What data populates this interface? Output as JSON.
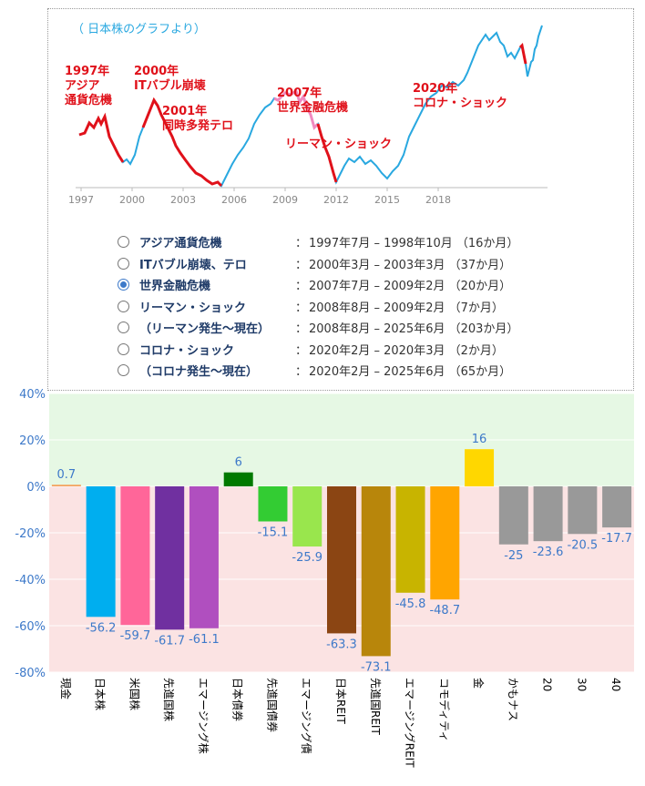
{
  "line_chart": {
    "caption": "（ 日本株のグラフより）",
    "x_ticks": [
      "1997",
      "2000",
      "2003",
      "2006",
      "2009",
      "2012",
      "2015",
      "2018"
    ],
    "annotations": [
      {
        "lines": [
          "1997年",
          "アジア",
          "通貨危機"
        ]
      },
      {
        "lines": [
          "2000年",
          "ITバブル崩壊"
        ]
      },
      {
        "lines": [
          "2001年",
          "同時多発テロ"
        ]
      },
      {
        "lines": [
          "2007年",
          "世界金融危機"
        ]
      },
      {
        "lines": [
          "リーマン・ショック"
        ]
      },
      {
        "lines": [
          "2020年",
          "コロナ・ショック"
        ]
      }
    ],
    "colors": {
      "line": "#29a8e0",
      "crisis": "#e0111a",
      "selected": "#f08ac0",
      "label": "#e0111a",
      "caption": "#29a8e0"
    }
  },
  "options": [
    {
      "name": "アジア通貨危機",
      "range": "1997年7月 – 1998年10月 （16か月）",
      "selected": false
    },
    {
      "name": "ITバブル崩壊、テロ",
      "range": "2000年3月 – 2003年3月 （37か月）",
      "selected": false
    },
    {
      "name": "世界金融危機",
      "range": "2007年7月 – 2009年2月 （20か月）",
      "selected": true
    },
    {
      "name": "リーマン・ショック",
      "range": "2008年8月 – 2009年2月 （7か月）",
      "selected": false
    },
    {
      "name": "（リーマン発生～現在）",
      "range": "2008年8月 – 2025年6月 （203か月）",
      "selected": false
    },
    {
      "name": "コロナ・ショック",
      "range": "2020年2月 – 2020年3月 （2か月）",
      "selected": false
    },
    {
      "name": "（コロナ発生～現在）",
      "range": "2020年2月 – 2025年6月 （65か月）",
      "selected": false
    }
  ],
  "option_colon": "：",
  "chart_data": {
    "type": "bar",
    "categories": [
      "現金",
      "日本株",
      "米国株",
      "先進国株",
      "エマージング株",
      "日本債券",
      "先進国債券",
      "エマージング債",
      "日本REIT",
      "先進国REIT",
      "エマージングREIT",
      "コモディティ",
      "金",
      "かもナス",
      "20",
      "30",
      "40"
    ],
    "values": [
      0.7,
      -56.2,
      -59.7,
      -61.7,
      -61.1,
      6,
      -15.1,
      -25.9,
      -63.3,
      -73.1,
      -45.8,
      -48.7,
      16,
      -25,
      -23.6,
      -20.5,
      -17.7
    ],
    "value_labels": [
      "0.7",
      "-56.2",
      "-59.7",
      "-61.7",
      "-61.1",
      "6",
      "-15.1",
      "-25.9",
      "-63.3",
      "-73.1",
      "-45.8",
      "-48.7",
      "16",
      "-25",
      "-23.6",
      "-20.5",
      "-17.7"
    ],
    "colors": [
      "#f4a460",
      "#00aeef",
      "#ff6699",
      "#7030a0",
      "#b04fbf",
      "#007a00",
      "#33cc33",
      "#99e64d",
      "#8b4513",
      "#b8860b",
      "#c8b400",
      "#ffa500",
      "#ffd700",
      "#999999",
      "#999999",
      "#999999",
      "#999999"
    ],
    "ylim": [
      -80,
      40
    ],
    "y_ticks": [
      "40%",
      "20%",
      "0%",
      "-20%",
      "-40%",
      "-60%",
      "-80%"
    ],
    "grid": true,
    "positive_band_color": "#e6f8e4",
    "negative_band_color": "#fbe3e3",
    "label_color": "#3d79c9"
  }
}
